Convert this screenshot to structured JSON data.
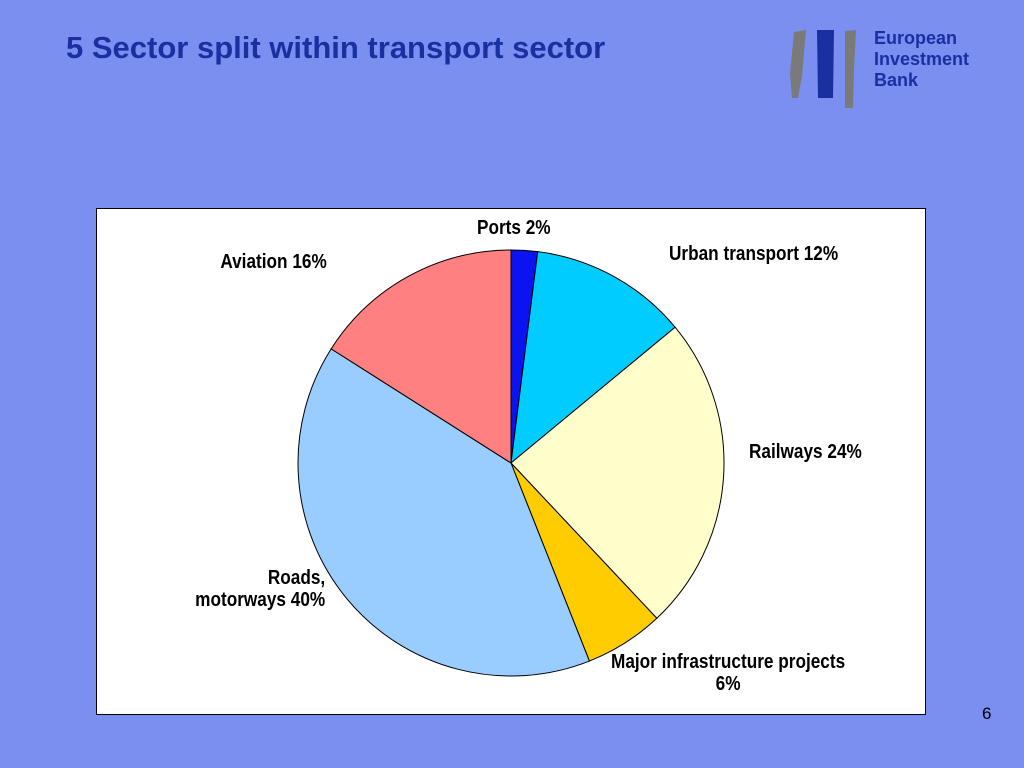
{
  "slide": {
    "title": "5 Sector split within transport sector",
    "page_number": "6",
    "background_color": "#7b8ff0"
  },
  "logo": {
    "line1": "European",
    "line2": "Investment",
    "line3": "Bank",
    "icon": "eib-logo-icon"
  },
  "chart_data": {
    "type": "pie",
    "start_angle_deg": 0,
    "direction": "clockwise",
    "grid": false,
    "legend": "none",
    "slices": [
      {
        "label": "Ports 2%",
        "name": "Ports",
        "value": 2,
        "color": "#0a14f0"
      },
      {
        "label": "Urban transport 12%",
        "name": "Urban transport",
        "value": 12,
        "color": "#00ccff"
      },
      {
        "label": "Railways 24%",
        "name": "Railways",
        "value": 24,
        "color": "#ffffcc"
      },
      {
        "label_line1": "Major infrastructure projects",
        "label_line2": "6%",
        "name": "Major infrastructure projects",
        "value": 6,
        "color": "#ffcc00"
      },
      {
        "label_line1": "Roads,",
        "label_line2": "motorways 40%",
        "name": "Roads, motorways",
        "value": 40,
        "color": "#99ccff"
      },
      {
        "label": "Aviation 16%",
        "name": "Aviation",
        "value": 16,
        "color": "#ff8080"
      }
    ]
  }
}
